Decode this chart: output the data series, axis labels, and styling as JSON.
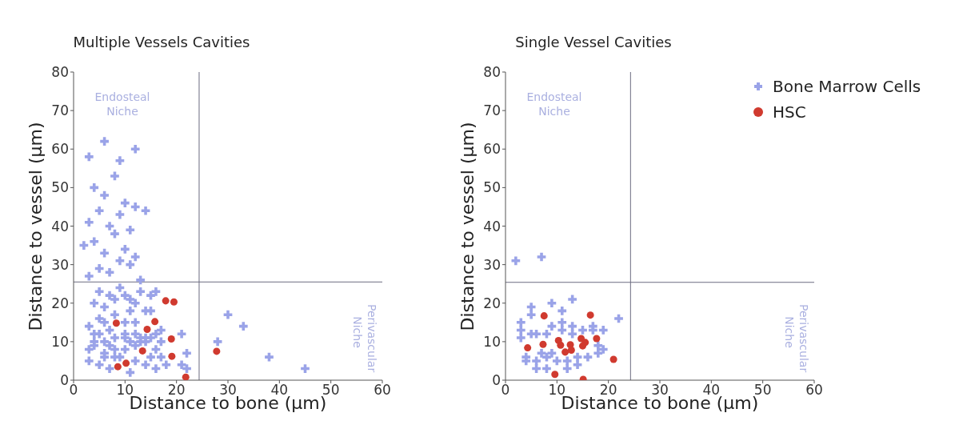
{
  "chart_data": [
    {
      "type": "scatter",
      "title": "Multiple Vessels Cavities",
      "xlabel": "Distance to bone (μm)",
      "ylabel": "Distance to vessel (μm)",
      "xlim": [
        0,
        60
      ],
      "ylim": [
        0,
        80
      ],
      "xticks": [
        0,
        10,
        20,
        30,
        40,
        50,
        60
      ],
      "yticks": [
        0,
        10,
        20,
        30,
        40,
        50,
        60,
        70,
        80
      ],
      "grid": false,
      "legend": false,
      "ref_lines": [
        {
          "axis": "x",
          "value": 24.4,
          "color": "#6b6b80"
        },
        {
          "axis": "y",
          "value": 25.5,
          "color": "#6b6b80"
        }
      ],
      "annotations": [
        "Endosteal Niche",
        "Perivascular Niche"
      ],
      "series": [
        {
          "color": "#9aa3e8",
          "marker": "cross",
          "x": [
            3,
            4,
            5,
            6,
            7,
            8,
            9,
            10,
            11,
            12,
            13,
            14,
            15,
            16,
            17,
            17,
            21,
            22,
            3,
            4,
            5,
            6,
            7,
            8,
            10,
            10,
            11,
            12,
            13,
            15,
            16,
            17,
            21,
            3,
            5,
            6,
            7,
            8,
            11,
            12,
            14,
            15,
            16,
            18,
            22,
            4,
            6,
            8,
            10,
            12,
            14,
            16,
            5,
            7,
            9,
            11,
            13,
            15,
            4,
            6,
            8,
            10,
            12,
            14,
            3,
            5,
            7,
            9,
            11,
            13,
            2,
            4,
            6,
            8,
            10,
            12,
            3,
            5,
            7,
            9,
            11,
            4,
            6,
            8,
            10,
            12,
            14,
            3,
            6,
            9,
            12,
            30,
            33,
            38,
            45,
            28
          ],
          "values": [
            8,
            10,
            12,
            7,
            9,
            11,
            6,
            8,
            10,
            12,
            10,
            11,
            11,
            8,
            6,
            13,
            4,
            7,
            14,
            12,
            16,
            15,
            13,
            17,
            15,
            12,
            18,
            15,
            11,
            18,
            12,
            10,
            12,
            5,
            4,
            6,
            3,
            6,
            2,
            5,
            4,
            6,
            3,
            4,
            3,
            20,
            19,
            21,
            22,
            20,
            18,
            23,
            23,
            22,
            24,
            21,
            23,
            22,
            9,
            10,
            8,
            11,
            9,
            10,
            27,
            29,
            28,
            31,
            30,
            26,
            35,
            36,
            33,
            38,
            34,
            32,
            41,
            44,
            40,
            43,
            39,
            50,
            48,
            53,
            46,
            45,
            44,
            58,
            62,
            57,
            60,
            17,
            14,
            6,
            3,
            10
          ]
        },
        {
          "color": "#d03a2f",
          "marker": "circle",
          "x": [
            8.3,
            17.9,
            19.5,
            15.8,
            14.3,
            19,
            13.4,
            19.1,
            10.2,
            8.6,
            21.8,
            27.8
          ],
          "values": [
            14.8,
            20.6,
            20.3,
            15.2,
            13.2,
            10.7,
            7.6,
            6.2,
            4.4,
            3.5,
            0.8,
            7.5
          ]
        }
      ]
    },
    {
      "type": "scatter",
      "title": "Single Vessel Cavities",
      "xlabel": "Distance to bone (μm)",
      "ylabel": "Distance to vessel (μm)",
      "xlim": [
        0,
        60
      ],
      "ylim": [
        0,
        80
      ],
      "xticks": [
        0,
        10,
        20,
        30,
        40,
        50,
        60
      ],
      "yticks": [
        0,
        10,
        20,
        30,
        40,
        50,
        60,
        70,
        80
      ],
      "grid": false,
      "legend": "top right",
      "ref_lines": [
        {
          "axis": "x",
          "value": 24.3,
          "color": "#6b6b80"
        },
        {
          "axis": "y",
          "value": 25.4,
          "color": "#6b6b80"
        }
      ],
      "annotations": [
        "Endosteal Niche",
        "Perivascular Niche"
      ],
      "series": [
        {
          "name": "Bone Marrow Cells",
          "color": "#9aa3e8",
          "marker": "cross",
          "x": [
            3,
            5,
            6,
            8,
            9,
            13,
            17,
            19,
            3,
            5,
            9,
            11,
            13,
            15,
            17,
            4,
            6,
            8,
            10,
            12,
            14,
            16,
            18,
            5,
            9,
            11,
            13,
            6,
            8,
            12,
            14,
            4,
            19,
            2,
            7,
            22,
            3,
            18,
            7,
            11
          ],
          "values": [
            11,
            12,
            12,
            12,
            7,
            12,
            13,
            8,
            15,
            17,
            14,
            13,
            14,
            13,
            14,
            6,
            5,
            6,
            5,
            5,
            6,
            6,
            7,
            19,
            20,
            18,
            21,
            3,
            3,
            3,
            4,
            5,
            13,
            31,
            32,
            16,
            13,
            9,
            7,
            15
          ]
        },
        {
          "name": "HSC",
          "color": "#d03a2f",
          "marker": "circle",
          "x": [
            7.5,
            16.5,
            4.3,
            7.3,
            10.3,
            10.7,
            12.6,
            11.6,
            12.8,
            14.7,
            15.5,
            15,
            17.7,
            21,
            9.6,
            15.1
          ],
          "values": [
            16.7,
            16.9,
            8.4,
            9.3,
            10.3,
            9.1,
            9.2,
            7.3,
            7.8,
            10.8,
            9.8,
            8.9,
            10.8,
            5.4,
            1.5,
            0.2
          ]
        }
      ]
    }
  ]
}
